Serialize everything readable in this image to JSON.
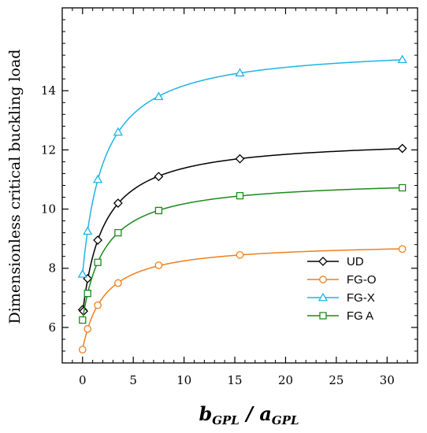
{
  "chart_data": {
    "type": "line",
    "title": "",
    "xlabel": {
      "main": "b",
      "sub": "GPL",
      "sep": " / ",
      "main2": "a",
      "sub2": "GPL"
    },
    "ylabel": "Dimensionless critical buckling load",
    "xlim": [
      -2,
      33
    ],
    "ylim": [
      4.8,
      16.8
    ],
    "xticks": [
      0,
      5,
      10,
      15,
      20,
      25,
      30
    ],
    "yticks": [
      6,
      8,
      10,
      12,
      14
    ],
    "legend_position": "lower-right",
    "series": [
      {
        "name": "UD",
        "color": "#000000",
        "marker": "diamond",
        "x": [
          0,
          0.1,
          0.5,
          1.5,
          3.5,
          7.5,
          15.5,
          31.5
        ],
        "y": [
          6.6,
          6.55,
          7.65,
          8.95,
          10.2,
          11.1,
          11.7,
          12.05
        ]
      },
      {
        "name": "FG-O",
        "color": "#f07f1b",
        "marker": "circle",
        "x": [
          0,
          0.5,
          1.5,
          3.5,
          7.5,
          15.5,
          31.5
        ],
        "y": [
          5.25,
          5.95,
          6.75,
          7.5,
          8.1,
          8.45,
          8.65
        ]
      },
      {
        "name": "FG-X",
        "color": "#1fb3e6",
        "marker": "triangle",
        "x": [
          0,
          0.5,
          1.5,
          3.5,
          7.5,
          15.5,
          31.5
        ],
        "y": [
          7.8,
          9.25,
          11.0,
          12.6,
          13.8,
          14.6,
          15.05
        ]
      },
      {
        "name": "FG A",
        "color": "#1a8a1a",
        "marker": "square",
        "x": [
          0,
          0.5,
          1.5,
          3.5,
          7.5,
          15.5,
          31.5
        ],
        "y": [
          6.25,
          7.15,
          8.2,
          9.2,
          9.95,
          10.45,
          10.72
        ]
      }
    ]
  }
}
